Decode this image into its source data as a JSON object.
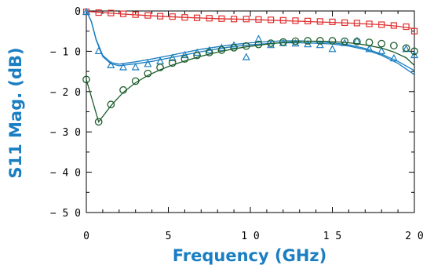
{
  "chart_data": {
    "type": "line",
    "xlabel": "Frequency (GHz)",
    "ylabel": "S11 Mag. (dB)",
    "xlim": [
      0,
      20
    ],
    "ylim": [
      -50,
      0
    ],
    "x_ticks": [
      0,
      5,
      10,
      15,
      20
    ],
    "x_tick_labels": [
      "0",
      "5",
      "1 0",
      "1 5",
      "2 0"
    ],
    "y_ticks": [
      0,
      -10,
      -20,
      -30,
      -40,
      -50
    ],
    "y_tick_labels": [
      "0",
      "− 1 0",
      "− 2 0",
      "− 3 0",
      "− 4 0",
      "− 5 0"
    ],
    "grid": false,
    "legend": "none",
    "colors": {
      "axis_title": "#1a7ec2",
      "red": "#e03030",
      "blue": "#1a7ec2",
      "green": "#1d5e2c"
    },
    "series": [
      {
        "style": "markers",
        "marker": "square",
        "color": "#e03030",
        "x": [
          0,
          0.75,
          1.5,
          2.25,
          3,
          3.75,
          4.5,
          5.25,
          6,
          6.75,
          7.5,
          8.25,
          9,
          9.75,
          10.5,
          11.25,
          12,
          12.75,
          13.5,
          14.25,
          15,
          15.75,
          16.5,
          17.25,
          18,
          18.75,
          19.5,
          20
        ],
        "y": [
          -0.2,
          -0.4,
          -0.5,
          -0.7,
          -0.9,
          -1.1,
          -1.3,
          -1.4,
          -1.6,
          -1.7,
          -1.8,
          -1.9,
          -2.0,
          -2.0,
          -2.1,
          -2.2,
          -2.3,
          -2.4,
          -2.5,
          -2.6,
          -2.7,
          -2.9,
          -3.0,
          -3.2,
          -3.4,
          -3.6,
          -3.9,
          -5.0
        ]
      },
      {
        "style": "line",
        "color": "#e03030",
        "x": [
          0,
          2,
          4,
          6,
          8,
          10,
          12,
          14,
          16,
          18,
          19,
          20
        ],
        "y": [
          -0.1,
          -0.7,
          -1.2,
          -1.6,
          -1.9,
          -2.1,
          -2.4,
          -2.7,
          -3.0,
          -3.4,
          -3.8,
          -4.4
        ]
      },
      {
        "style": "line",
        "color": "#1a7ec2",
        "x": [
          0,
          0.3,
          0.6,
          1,
          1.5,
          2,
          3,
          4,
          5,
          6,
          7,
          8,
          9,
          10,
          11,
          12,
          13,
          14,
          15,
          16,
          17,
          18,
          19,
          20
        ],
        "y": [
          0,
          -2.5,
          -7,
          -11,
          -12.8,
          -13.2,
          -12.6,
          -11.9,
          -11.1,
          -10.3,
          -9.5,
          -8.9,
          -8.3,
          -7.9,
          -7.6,
          -7.4,
          -7.4,
          -7.6,
          -7.9,
          -8.4,
          -9.3,
          -10.7,
          -12.5,
          -14.8
        ]
      },
      {
        "style": "line",
        "color": "#1a7ec2",
        "x": [
          0,
          0.3,
          0.6,
          1,
          1.5,
          2,
          3,
          4,
          5,
          6,
          7,
          8,
          9,
          10,
          11,
          12,
          13,
          14,
          15,
          16,
          17,
          18,
          19,
          20
        ],
        "y": [
          0,
          -2.6,
          -7.2,
          -11.3,
          -13.1,
          -13.6,
          -13.1,
          -12.5,
          -11.7,
          -10.9,
          -10.1,
          -9.4,
          -8.8,
          -8.4,
          -8.1,
          -7.9,
          -7.9,
          -8.0,
          -8.2,
          -8.7,
          -9.6,
          -11.0,
          -13.0,
          -15.8
        ]
      },
      {
        "style": "markers",
        "marker": "triangle",
        "color": "#1a7ec2",
        "x": [
          0,
          0.75,
          1.5,
          2.25,
          3,
          3.75,
          4.5,
          5.25,
          6,
          6.75,
          7.5,
          8.25,
          9,
          9.75,
          10.5,
          11.25,
          12,
          12.75,
          13.5,
          14.25,
          15,
          15.75,
          16.5,
          17.25,
          18,
          18.75,
          19.5,
          20
        ],
        "y": [
          -0.3,
          -10,
          -13.5,
          -14,
          -14,
          -13.2,
          -12.5,
          -11.7,
          -11,
          -10.4,
          -9.8,
          -9.2,
          -8.6,
          -11.5,
          -7,
          -8.5,
          -8,
          -8.1,
          -8.3,
          -8.5,
          -9.5,
          -8,
          -7.5,
          -9.5,
          -10,
          -11.8,
          -9.5,
          -11
        ]
      },
      {
        "style": "line",
        "color": "#1d5e2c",
        "x": [
          0,
          0.75,
          1.5,
          2.25,
          3,
          3.75,
          4.5,
          5.25,
          6,
          6.75,
          7.5,
          8.25,
          9,
          9.75,
          10.5,
          11.25,
          12,
          12.75,
          13.5,
          14.25,
          15,
          15.75,
          16.5,
          17.25,
          18,
          18.75,
          19.5,
          20
        ],
        "y": [
          -17,
          -27.5,
          -23.5,
          -20.2,
          -17.8,
          -16,
          -14.6,
          -13.4,
          -12.4,
          -11.5,
          -10.7,
          -10,
          -9.4,
          -8.9,
          -8.5,
          -8.1,
          -7.8,
          -7.6,
          -7.5,
          -7.5,
          -7.6,
          -7.8,
          -8.1,
          -8.6,
          -9.2,
          -10.2,
          -11.6,
          -13.5
        ]
      },
      {
        "style": "markers",
        "marker": "circle",
        "color": "#1d5e2c",
        "x": [
          0,
          0.75,
          1.5,
          2.25,
          3,
          3.75,
          4.5,
          5.25,
          6,
          6.75,
          7.5,
          8.25,
          9,
          9.75,
          10.5,
          11.25,
          12,
          12.75,
          13.5,
          14.25,
          15,
          15.75,
          16.5,
          17.25,
          18,
          18.75,
          19.5,
          20
        ],
        "y": [
          -17,
          -27.5,
          -23.2,
          -19.6,
          -17.4,
          -15.5,
          -14,
          -12.9,
          -11.9,
          -11,
          -10.3,
          -9.7,
          -9.1,
          -8.7,
          -8.3,
          -8,
          -7.7,
          -7.5,
          -7.4,
          -7.4,
          -7.4,
          -7.5,
          -7.6,
          -7.8,
          -8.1,
          -8.6,
          -9.2,
          -10
        ]
      }
    ]
  }
}
